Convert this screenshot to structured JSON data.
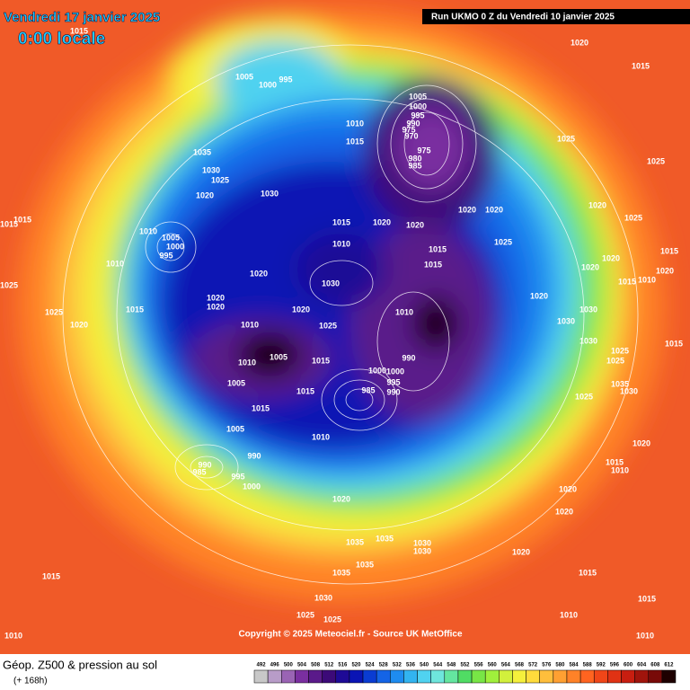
{
  "header": {
    "date": "Vendredi 17 janvier 2025",
    "time": "0:00 locale",
    "run": "Run UKMO 0 Z du Vendredi 10 janvier 2025"
  },
  "copyright": "Copyright © 2025 Meteociel.fr - Source UK MetOffice",
  "footer": {
    "title": "Géop. Z500 & pression au sol",
    "lead": "(+ 168h)"
  },
  "scale": {
    "values": [
      492,
      496,
      500,
      504,
      508,
      512,
      516,
      520,
      524,
      528,
      532,
      536,
      540,
      544,
      548,
      552,
      556,
      560,
      564,
      568,
      572,
      576,
      580,
      584,
      588,
      592,
      596,
      600,
      604,
      608,
      612
    ],
    "colors": [
      "#c8c8c8",
      "#b89cc8",
      "#9a64b4",
      "#7a2fa0",
      "#5a1a8a",
      "#3c0a78",
      "#1e0a96",
      "#0a14b4",
      "#0a3cd2",
      "#1464e6",
      "#1e8cf0",
      "#32b4f0",
      "#50d2f0",
      "#6ee6dc",
      "#64e6a0",
      "#50dc64",
      "#78e646",
      "#a0f03c",
      "#d2f03c",
      "#f5f03c",
      "#ffdc3c",
      "#ffbe3c",
      "#ffa032",
      "#ff8228",
      "#ff6420",
      "#f04618",
      "#e03214",
      "#c81e10",
      "#a0140c",
      "#780a08",
      "#1e0000"
    ]
  },
  "pressure_labels": [
    "1015",
    "1020",
    "1015",
    "1005",
    "1000",
    "995",
    "1005",
    "1000",
    "995",
    "990",
    "975",
    "970",
    "1010",
    "1015",
    "1025",
    "1035",
    "975",
    "980",
    "985",
    "1025",
    "1030",
    "1025",
    "1020",
    "1030",
    "1020",
    "1020",
    "1015",
    "1020",
    "1020",
    "1020",
    "1015",
    "1015",
    "1010",
    "1005",
    "1000",
    "995",
    "1010",
    "1015",
    "1025",
    "1025",
    "1015",
    "1010",
    "1015",
    "1020",
    "1020",
    "1020",
    "1020",
    "1030",
    "1015",
    "1010",
    "1025",
    "1020",
    "1020",
    "1015",
    "1020",
    "1010",
    "1020",
    "1030",
    "1025",
    "1020",
    "1010",
    "1025",
    "1030",
    "1005",
    "1010",
    "1015",
    "990",
    "1000",
    "1000",
    "995",
    "990",
    "1030",
    "1025",
    "1015",
    "1025",
    "1005",
    "1015",
    "1015",
    "985",
    "1035",
    "1030",
    "1025",
    "1005",
    "1010",
    "1020",
    "990",
    "985",
    "990",
    "995",
    "1000",
    "1015",
    "1010",
    "1020",
    "1020",
    "1020",
    "1035",
    "1035",
    "1030",
    "1030",
    "1035",
    "1020",
    "1035",
    "1015",
    "1015",
    "1015",
    "1030",
    "1025",
    "1025",
    "1010",
    "1010",
    "1010"
  ]
}
